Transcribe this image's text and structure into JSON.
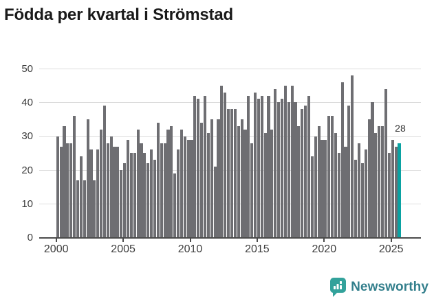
{
  "title": "Födda per kvartal i Strömstad",
  "annotation": {
    "label": "28"
  },
  "branding": {
    "name": "Newsworthy",
    "icon": "newsworthy-logo-icon"
  },
  "colors": {
    "bar_default": "#6e6e72",
    "bar_highlight": "#0aa2a2",
    "gridline": "#dcdcdc",
    "axis": "#4b4b4b",
    "tick_text": "#3d3d3d",
    "title_text": "#1a1a1a",
    "annotation_text": "#333333",
    "logo_icon": "#33a29b",
    "logo_text": "#337f8c"
  },
  "chart_data": {
    "type": "bar",
    "title": "Födda per kvartal i Strömstad",
    "xlabel": "",
    "ylabel": "",
    "grid": true,
    "legend": false,
    "y_ticks": [
      0,
      10,
      20,
      30,
      40,
      50
    ],
    "ylim": [
      0,
      50
    ],
    "x_tick_labels": [
      "2000",
      "2005",
      "2010",
      "2015",
      "2020",
      "2025"
    ],
    "period": "quarterly",
    "start_quarter": "2000-Q1",
    "end_quarter": "2025-Q3",
    "highlight_last": true,
    "highlighted_quarter": "2025-Q3",
    "highlighted_value": 28,
    "values": [
      30,
      27,
      33,
      28,
      28,
      36,
      17,
      24,
      17,
      35,
      26,
      17,
      26,
      32,
      39,
      28,
      30,
      27,
      27,
      20,
      22,
      29,
      25,
      25,
      32,
      28,
      25,
      22,
      26,
      23,
      34,
      28,
      28,
      32,
      33,
      19,
      26,
      32,
      30,
      29,
      29,
      42,
      41,
      34,
      42,
      31,
      35,
      21,
      35,
      45,
      43,
      38,
      38,
      38,
      33,
      35,
      32,
      42,
      28,
      43,
      41,
      42,
      31,
      42,
      32,
      44,
      40,
      41,
      45,
      40,
      45,
      40,
      33,
      38,
      39,
      42,
      24,
      30,
      33,
      29,
      29,
      36,
      36,
      31,
      25,
      46,
      27,
      39,
      48,
      23,
      28,
      22,
      26,
      35,
      40,
      31,
      33,
      33,
      44,
      25,
      29,
      27,
      28
    ]
  }
}
